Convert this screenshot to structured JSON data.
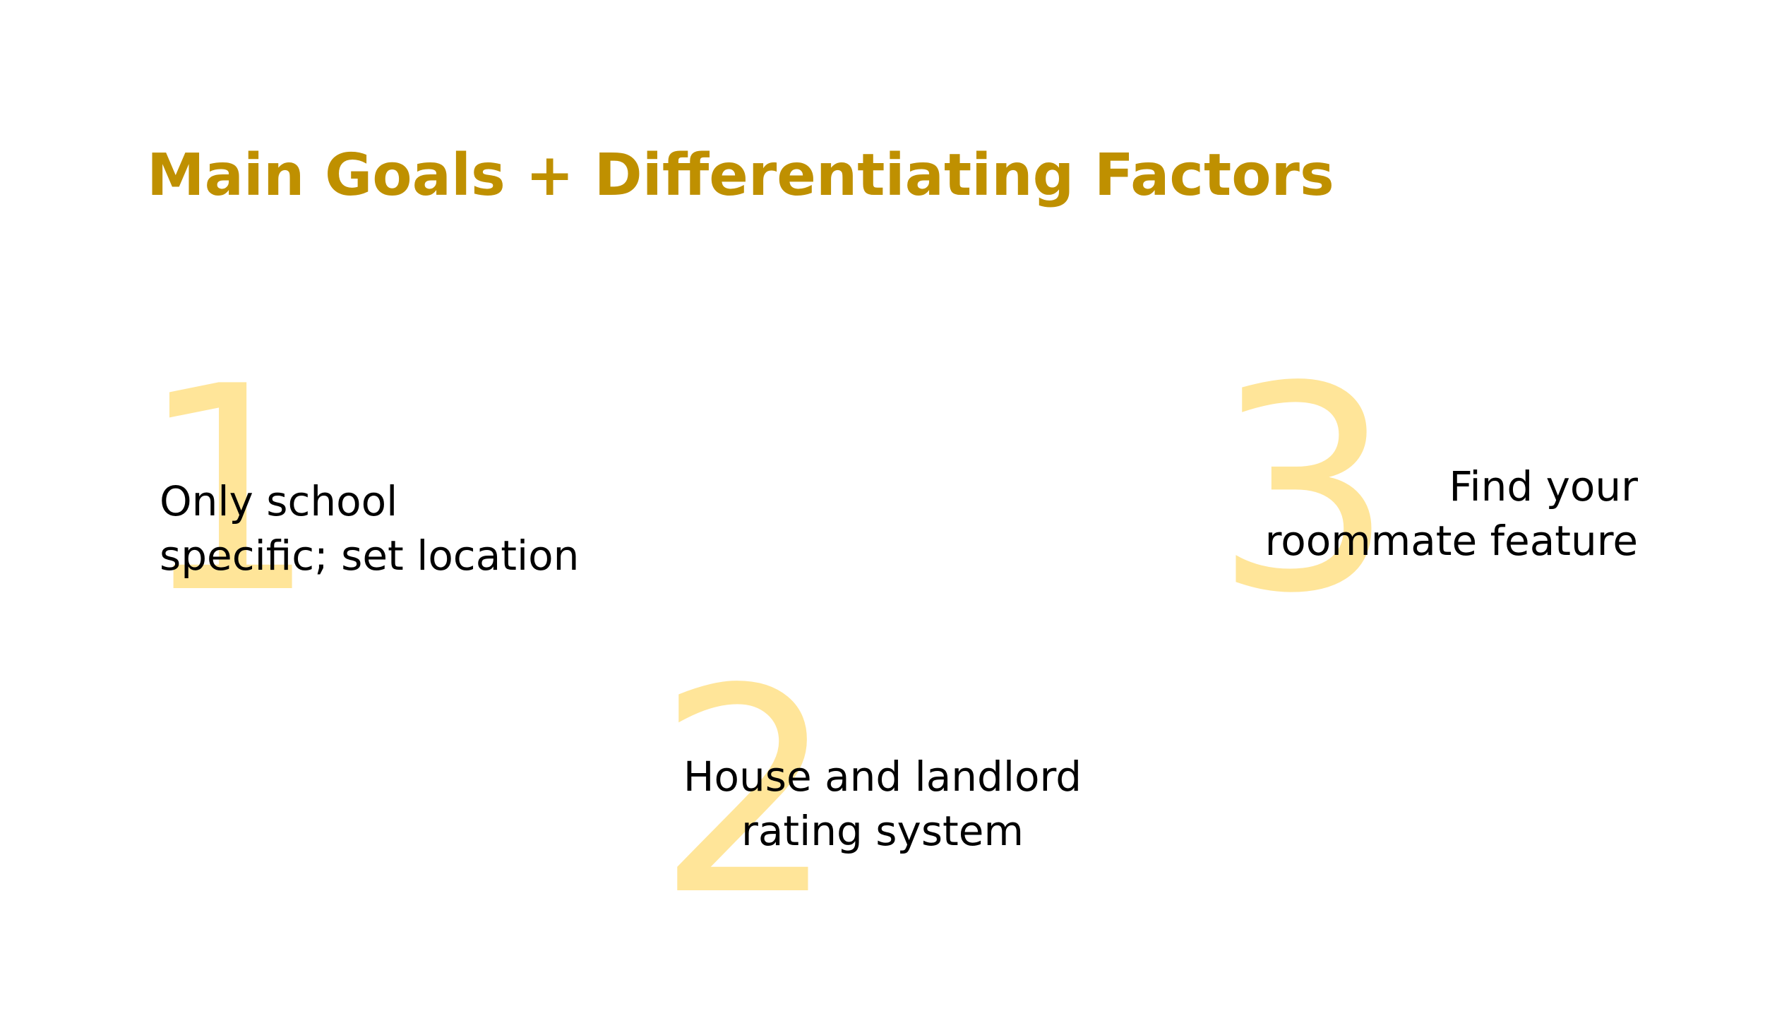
{
  "slide": {
    "title": "Main Goals + Differentiating Factors",
    "items": [
      {
        "number": "1",
        "lines": [
          "Only school",
          "specific; set location"
        ]
      },
      {
        "number": "2",
        "lines": [
          "House and landlord",
          "rating system"
        ]
      },
      {
        "number": "3",
        "lines": [
          "Find your",
          "roommate feature"
        ]
      }
    ]
  },
  "colors": {
    "title": "#BF9000",
    "number": "#FFE599",
    "text": "#000000",
    "background": "#FFFFFF"
  }
}
